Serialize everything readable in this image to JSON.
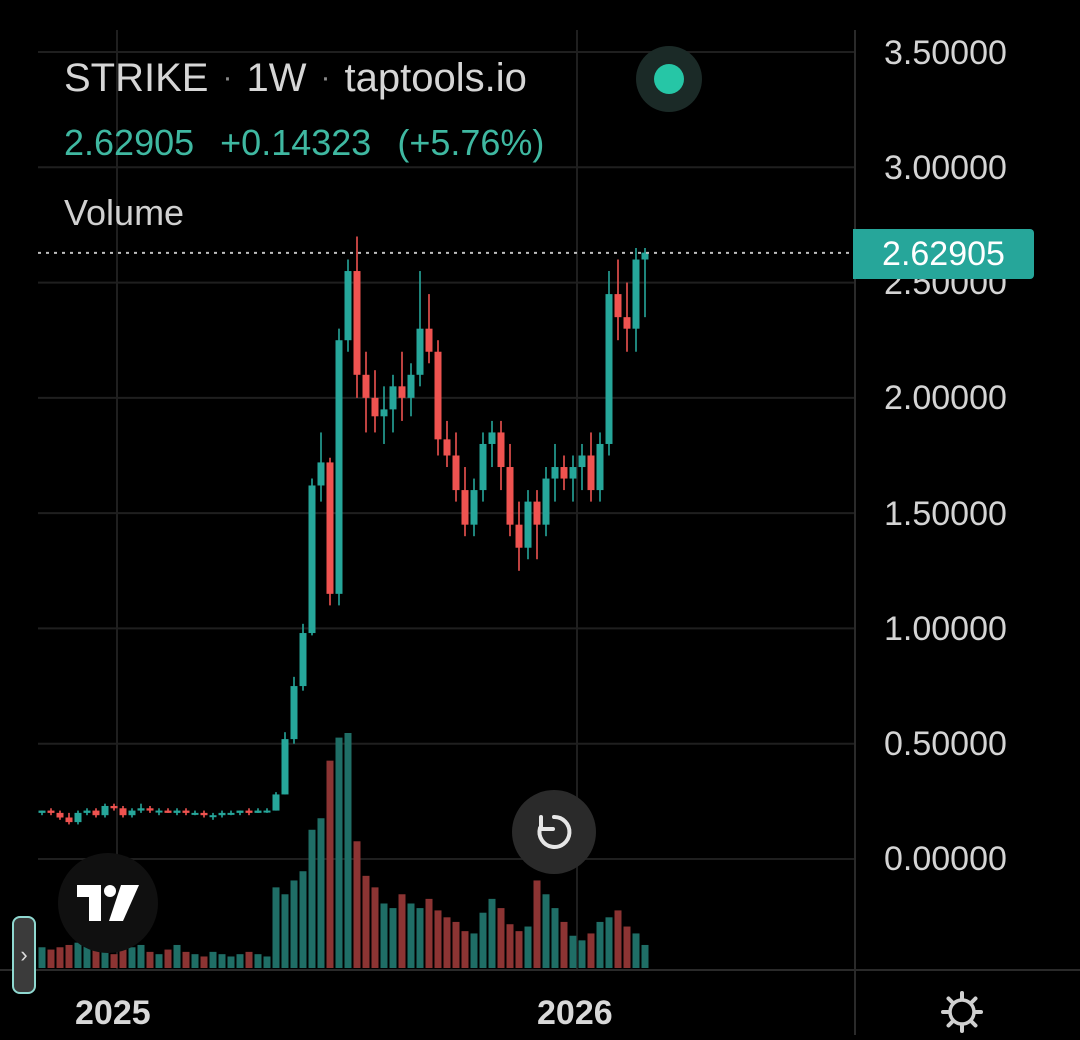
{
  "header": {
    "symbol": "STRIKE",
    "interval": "1W",
    "source": "taptools.io",
    "last_price": "2.62905",
    "change": "+0.14323",
    "change_pct": "(+5.76%)",
    "indicator_label": "Volume"
  },
  "price_tag": "2.62905",
  "status_color": "#26c6a6",
  "colors": {
    "up": "#26a69a",
    "down": "#ef5350",
    "grid": "#1f1f1f",
    "background": "#000000"
  },
  "icons": [
    "tradingview-logo-icon",
    "reset-icon",
    "chevron-right-icon",
    "gear-icon"
  ],
  "chart_data": {
    "type": "candlestick",
    "y_ticks": [
      "3.50000",
      "3.00000",
      "2.50000",
      "2.00000",
      "1.50000",
      "1.00000",
      "0.50000",
      "0.00000"
    ],
    "x_ticks": [
      "2025",
      "2026"
    ],
    "ylim": [
      0,
      3.5
    ],
    "last_price": 2.62905,
    "series": [
      {
        "values": [
          [
            0.2,
            0.21,
            0.19,
            0.21
          ],
          [
            0.21,
            0.22,
            0.19,
            0.2
          ],
          [
            0.2,
            0.21,
            0.17,
            0.18
          ],
          [
            0.18,
            0.2,
            0.15,
            0.16
          ],
          [
            0.16,
            0.21,
            0.15,
            0.2
          ],
          [
            0.2,
            0.22,
            0.19,
            0.21
          ],
          [
            0.21,
            0.22,
            0.18,
            0.19
          ],
          [
            0.19,
            0.24,
            0.18,
            0.23
          ],
          [
            0.23,
            0.24,
            0.21,
            0.22
          ],
          [
            0.22,
            0.23,
            0.18,
            0.19
          ],
          [
            0.19,
            0.22,
            0.18,
            0.21
          ],
          [
            0.21,
            0.24,
            0.2,
            0.22
          ],
          [
            0.22,
            0.23,
            0.2,
            0.21
          ],
          [
            0.21,
            0.22,
            0.19,
            0.21
          ],
          [
            0.21,
            0.22,
            0.2,
            0.2
          ],
          [
            0.2,
            0.22,
            0.19,
            0.21
          ],
          [
            0.21,
            0.22,
            0.19,
            0.2
          ],
          [
            0.2,
            0.21,
            0.19,
            0.2
          ],
          [
            0.2,
            0.21,
            0.18,
            0.19
          ],
          [
            0.19,
            0.2,
            0.17,
            0.19
          ],
          [
            0.19,
            0.21,
            0.18,
            0.2
          ],
          [
            0.2,
            0.21,
            0.19,
            0.2
          ],
          [
            0.2,
            0.21,
            0.19,
            0.21
          ],
          [
            0.21,
            0.22,
            0.19,
            0.2
          ],
          [
            0.2,
            0.22,
            0.2,
            0.21
          ],
          [
            0.21,
            0.22,
            0.2,
            0.21
          ],
          [
            0.21,
            0.29,
            0.21,
            0.28
          ],
          [
            0.28,
            0.55,
            0.28,
            0.52
          ],
          [
            0.52,
            0.79,
            0.5,
            0.75
          ],
          [
            0.75,
            1.02,
            0.73,
            0.98
          ],
          [
            0.98,
            1.65,
            0.97,
            1.62
          ],
          [
            1.62,
            1.85,
            1.55,
            1.72
          ],
          [
            1.72,
            1.74,
            1.1,
            1.15
          ],
          [
            1.15,
            2.3,
            1.1,
            2.25
          ],
          [
            2.25,
            2.6,
            2.2,
            2.55
          ],
          [
            2.55,
            2.7,
            2.0,
            2.1
          ],
          [
            2.1,
            2.2,
            1.85,
            2.0
          ],
          [
            2.0,
            2.12,
            1.85,
            1.92
          ],
          [
            1.92,
            2.05,
            1.8,
            1.95
          ],
          [
            1.95,
            2.1,
            1.85,
            2.05
          ],
          [
            2.05,
            2.2,
            1.9,
            2.0
          ],
          [
            2.0,
            2.15,
            1.92,
            2.1
          ],
          [
            2.1,
            2.55,
            2.05,
            2.3
          ],
          [
            2.3,
            2.45,
            2.15,
            2.2
          ],
          [
            2.2,
            2.25,
            1.75,
            1.82
          ],
          [
            1.82,
            1.9,
            1.7,
            1.75
          ],
          [
            1.75,
            1.85,
            1.55,
            1.6
          ],
          [
            1.6,
            1.7,
            1.4,
            1.45
          ],
          [
            1.45,
            1.65,
            1.4,
            1.6
          ],
          [
            1.6,
            1.85,
            1.55,
            1.8
          ],
          [
            1.8,
            1.9,
            1.7,
            1.85
          ],
          [
            1.85,
            1.9,
            1.6,
            1.7
          ],
          [
            1.7,
            1.8,
            1.4,
            1.45
          ],
          [
            1.45,
            1.55,
            1.25,
            1.35
          ],
          [
            1.35,
            1.6,
            1.3,
            1.55
          ],
          [
            1.55,
            1.6,
            1.3,
            1.45
          ],
          [
            1.45,
            1.7,
            1.4,
            1.65
          ],
          [
            1.65,
            1.8,
            1.55,
            1.7
          ],
          [
            1.7,
            1.75,
            1.6,
            1.65
          ],
          [
            1.65,
            1.75,
            1.55,
            1.7
          ],
          [
            1.7,
            1.8,
            1.6,
            1.75
          ],
          [
            1.75,
            1.85,
            1.55,
            1.6
          ],
          [
            1.6,
            1.85,
            1.55,
            1.8
          ],
          [
            1.8,
            2.55,
            1.75,
            2.45
          ],
          [
            2.45,
            2.6,
            2.25,
            2.35
          ],
          [
            2.35,
            2.5,
            2.2,
            2.3
          ],
          [
            2.3,
            2.65,
            2.2,
            2.6
          ],
          [
            2.6,
            2.65,
            2.35,
            2.63
          ]
        ]
      }
    ],
    "volume": [
      0.9,
      0.8,
      0.9,
      1.0,
      1.1,
      1.0,
      0.8,
      0.7,
      0.6,
      0.8,
      0.9,
      1.0,
      0.7,
      0.6,
      0.8,
      1.0,
      0.7,
      0.6,
      0.5,
      0.7,
      0.6,
      0.5,
      0.6,
      0.7,
      0.6,
      0.5,
      3.5,
      3.2,
      3.8,
      4.2,
      6.0,
      6.5,
      9.0,
      10.0,
      10.2,
      5.5,
      4.0,
      3.5,
      2.8,
      2.6,
      3.2,
      2.8,
      2.6,
      3.0,
      2.5,
      2.2,
      2.0,
      1.6,
      1.5,
      2.4,
      3.0,
      2.6,
      1.9,
      1.6,
      1.8,
      3.8,
      3.2,
      2.6,
      2.0,
      1.4,
      1.2,
      1.5,
      2.0,
      2.2,
      2.5,
      1.8,
      1.5,
      1.0
    ]
  }
}
